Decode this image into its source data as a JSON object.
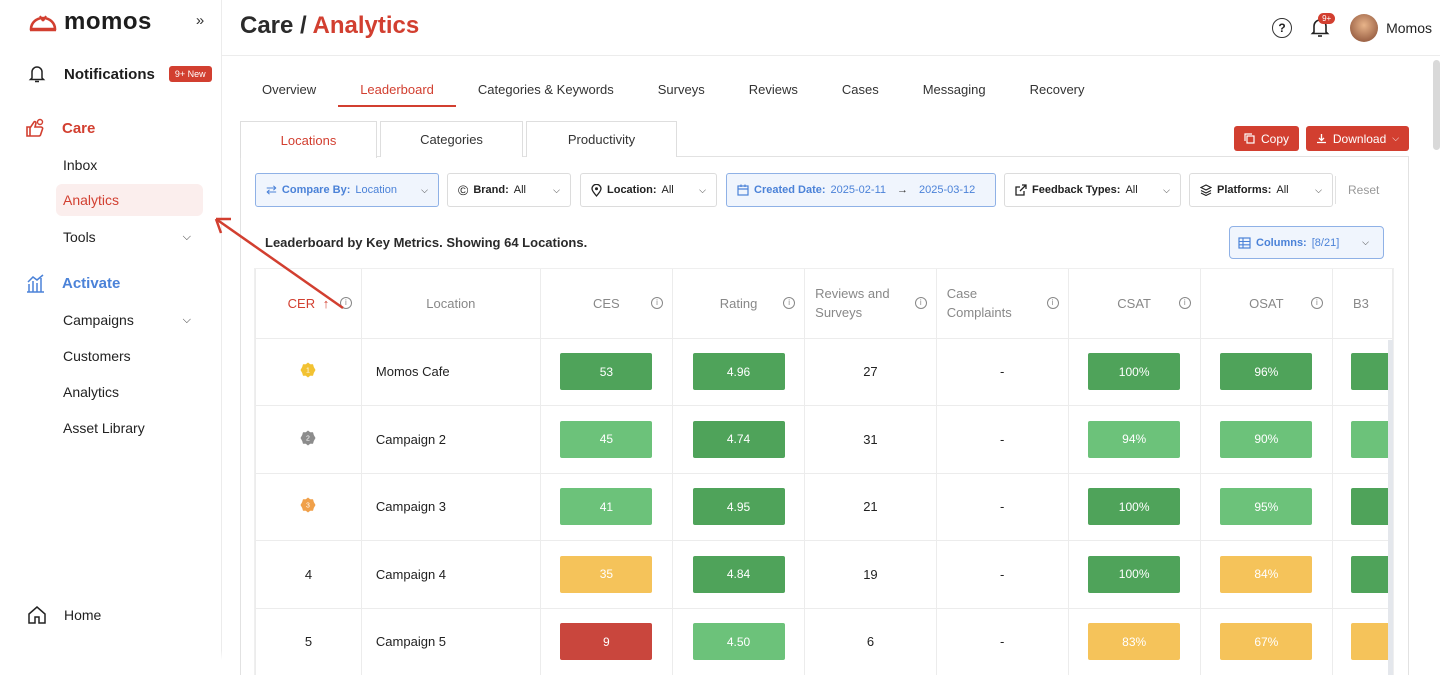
{
  "sidebar": {
    "logo_text": "momos",
    "collapse_glyph": "»",
    "notifications": {
      "label": "Notifications",
      "badge": "9+ New"
    },
    "care": {
      "label": "Care",
      "items": [
        {
          "label": "Inbox"
        },
        {
          "label": "Analytics"
        },
        {
          "label": "Tools"
        }
      ]
    },
    "activate": {
      "label": "Activate",
      "items": [
        {
          "label": "Campaigns"
        },
        {
          "label": "Customers"
        },
        {
          "label": "Analytics"
        },
        {
          "label": "Asset Library"
        }
      ]
    },
    "home_label": "Home"
  },
  "header": {
    "title_prefix": "Care / ",
    "title_accent": "Analytics",
    "help_glyph": "?",
    "bell_badge": "9+",
    "user_name": "Momos"
  },
  "main_tabs": [
    "Overview",
    "Leaderboard",
    "Categories & Keywords",
    "Surveys",
    "Reviews",
    "Cases",
    "Messaging",
    "Recovery"
  ],
  "sub_tabs": [
    "Locations",
    "Categories",
    "Productivity"
  ],
  "actions": {
    "copy": "Copy",
    "download": "Download"
  },
  "filters": {
    "compare_label": "Compare By:",
    "compare_value": "Location",
    "brand_label": "Brand:",
    "brand_value": "All",
    "location_label": "Location:",
    "location_value": "All",
    "date_label": "Created Date:",
    "date_from": "2025-02-11",
    "date_arrow": "→",
    "date_to": "2025-03-12",
    "feedback_label": "Feedback Types:",
    "feedback_value": "All",
    "platforms_label": "Platforms:",
    "platforms_value": "All",
    "reset": "Reset"
  },
  "summary": "Leaderboard by Key Metrics. Showing 64 Locations.",
  "columns_btn": {
    "label": "Columns:",
    "value": "[8/21]"
  },
  "table": {
    "headers": {
      "cer": "CER",
      "cer_sort": "↑",
      "location": "Location",
      "ces": "CES",
      "rating": "Rating",
      "reviews_1": "Reviews and",
      "reviews_2": "Surveys",
      "cases_1": "Case",
      "cases_2": "Complaints",
      "csat": "CSAT",
      "osat": "OSAT",
      "b3": "B3"
    },
    "rows": [
      {
        "rank": "1",
        "medal": "gold",
        "location": "Momos Cafe",
        "ces": "53",
        "ces_color": "#4fa35a",
        "rating": "4.96",
        "rating_color": "#4fa35a",
        "reviews": "27",
        "cases": "-",
        "csat": "100%",
        "csat_color": "#4fa35a",
        "osat": "96%",
        "osat_color": "#4fa35a",
        "b3_color": "#4fa35a"
      },
      {
        "rank": "2",
        "medal": "silver",
        "location": "Campaign 2",
        "ces": "45",
        "ces_color": "#6cc27a",
        "rating": "4.74",
        "rating_color": "#4fa35a",
        "reviews": "31",
        "cases": "-",
        "csat": "94%",
        "csat_color": "#6cc27a",
        "osat": "90%",
        "osat_color": "#6cc27a",
        "b3_color": "#6cc27a"
      },
      {
        "rank": "3",
        "medal": "bronze",
        "location": "Campaign 3",
        "ces": "41",
        "ces_color": "#6cc27a",
        "rating": "4.95",
        "rating_color": "#4fa35a",
        "reviews": "21",
        "cases": "-",
        "csat": "100%",
        "csat_color": "#4fa35a",
        "osat": "95%",
        "osat_color": "#6cc27a",
        "b3_color": "#4fa35a"
      },
      {
        "rank": "4",
        "medal": "",
        "location": "Campaign 4",
        "ces": "35",
        "ces_color": "#f5c35a",
        "rating": "4.84",
        "rating_color": "#4fa35a",
        "reviews": "19",
        "cases": "-",
        "csat": "100%",
        "csat_color": "#4fa35a",
        "osat": "84%",
        "osat_color": "#f5c35a",
        "b3_color": "#4fa35a"
      },
      {
        "rank": "5",
        "medal": "",
        "location": "Campaign 5",
        "ces": "9",
        "ces_color": "#c9463d",
        "rating": "4.50",
        "rating_color": "#6cc27a",
        "reviews": "6",
        "cases": "-",
        "csat": "83%",
        "csat_color": "#f5c35a",
        "osat": "67%",
        "osat_color": "#f5c35a",
        "b3_color": "#f5c35a"
      }
    ]
  },
  "colors": {
    "accent_red": "#d23f30",
    "accent_blue": "#4b82d8",
    "medal_gold": "#f2c232",
    "medal_silver": "#8c8c8c",
    "medal_bronze": "#f0a04a"
  }
}
